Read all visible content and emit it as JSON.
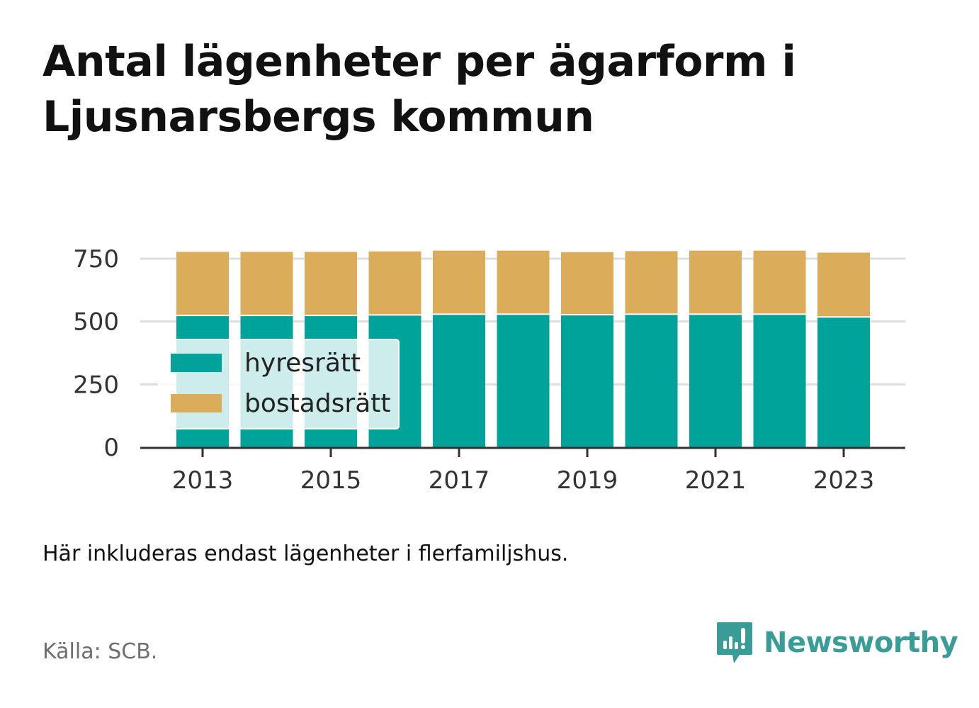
{
  "title": "Antal lägenheter per ägarform i Ljusnarsbergs kommun",
  "note": "Här inkluderas endast lägenheter i flerfamiljshus.",
  "source": "Källa: SCB.",
  "brand": {
    "name": "Newsworthy",
    "icon": "newsworthy-logo-icon",
    "color": "#3a9c96"
  },
  "chart_data": {
    "type": "bar",
    "stacked": true,
    "categories": [
      "2013",
      "2014",
      "2015",
      "2016",
      "2017",
      "2018",
      "2019",
      "2020",
      "2021",
      "2022",
      "2023"
    ],
    "x_tick_labels": [
      "2013",
      "2015",
      "2017",
      "2019",
      "2021",
      "2023"
    ],
    "series": [
      {
        "name": "hyresrätt",
        "color": "#00a39a",
        "values": [
          527,
          527,
          527,
          529,
          532,
          532,
          530,
          532,
          532,
          532,
          521
        ]
      },
      {
        "name": "bostadsrätt",
        "color": "#dbac5a",
        "values": [
          250,
          250,
          250,
          250,
          250,
          250,
          246,
          248,
          250,
          250,
          253
        ]
      }
    ],
    "y_ticks": [
      0,
      250,
      500,
      750
    ],
    "ylim": [
      0,
      750
    ],
    "xlabel": "",
    "ylabel": "",
    "grid": true,
    "legend": "left, inside plot"
  }
}
